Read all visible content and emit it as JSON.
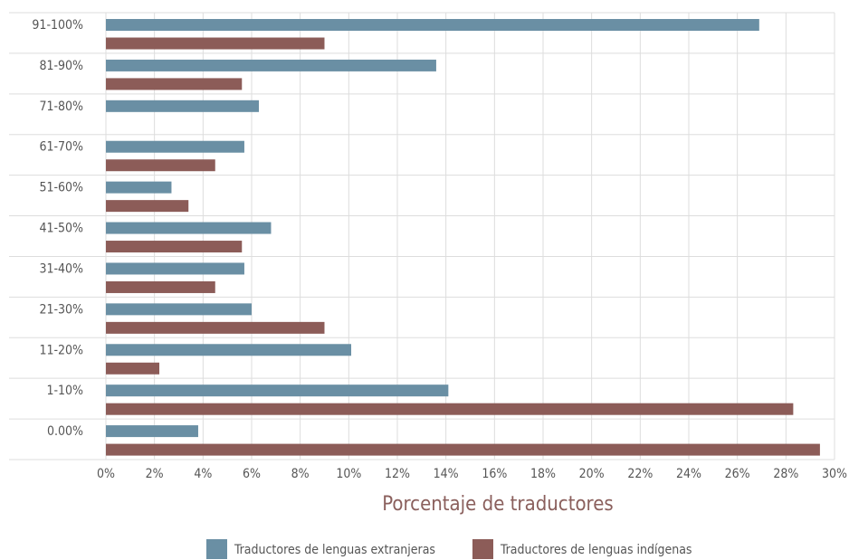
{
  "chart_data": {
    "type": "hbar",
    "categories": [
      "91-100%",
      "81-90%",
      "71-80%",
      "61-70%",
      "51-60%",
      "41-50%",
      "31-40%",
      "21-30%",
      "11-20%",
      "1-10%",
      "0.00%"
    ],
    "series": [
      {
        "name": "Traductores de lenguas extranjeras",
        "color": "#6a8fa4",
        "values": [
          26.9,
          13.6,
          6.3,
          5.7,
          2.7,
          6.8,
          5.7,
          6.0,
          10.1,
          14.1,
          3.8
        ]
      },
      {
        "name": "Traductores de lenguas indígenas",
        "color": "#8c5c58",
        "values": [
          9.0,
          5.6,
          0,
          4.5,
          3.4,
          5.6,
          4.5,
          9.0,
          2.2,
          28.3,
          29.4
        ]
      }
    ],
    "xlabel": "Porcentaje de traductores",
    "xlim": [
      0,
      30
    ],
    "xticks": [
      {
        "value": 0,
        "label": "0%"
      },
      {
        "value": 2,
        "label": "2%"
      },
      {
        "value": 4,
        "label": "4%"
      },
      {
        "value": 6,
        "label": "6%"
      },
      {
        "value": 8,
        "label": "8%"
      },
      {
        "value": 10,
        "label": "10%"
      },
      {
        "value": 12,
        "label": "12%"
      },
      {
        "value": 14,
        "label": "14%"
      },
      {
        "value": 16,
        "label": "16%"
      },
      {
        "value": 18,
        "label": "18%"
      },
      {
        "value": 20,
        "label": "20%"
      },
      {
        "value": 22,
        "label": "22%"
      },
      {
        "value": 24,
        "label": "24%"
      },
      {
        "value": 26,
        "label": "26%"
      },
      {
        "value": 28,
        "label": "28%"
      },
      {
        "value": 30,
        "label": "30%"
      }
    ],
    "grid": true,
    "legend": "bottom"
  }
}
